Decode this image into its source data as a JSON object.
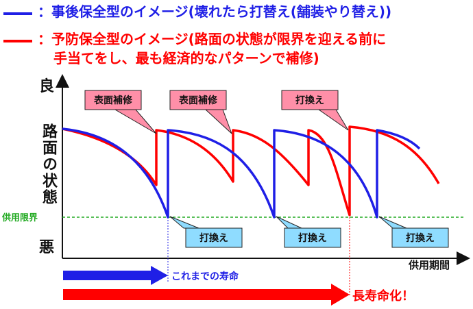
{
  "legend": {
    "blue": {
      "color": "#1f1fe6",
      "text": "：事後保全型のイメージ(壊れたら打替え(舗装やり替え))"
    },
    "red": {
      "color": "#ff0000",
      "line1": "：予防保全型のイメージ(路面の状態が限界を迎える前に",
      "line2": "手当てをし、最も経済的なパターンで補修)"
    }
  },
  "axes": {
    "y_top": "良",
    "y_label": "路面の状態",
    "y_bottom": "悪",
    "x_label": "供用期間",
    "limit_label": "供用限界"
  },
  "callouts": {
    "red": [
      "表面補修",
      "表面補修",
      "打換え"
    ],
    "blue": [
      "打換え",
      "打換え",
      "打換え"
    ]
  },
  "arrows": {
    "blue_label": "これまでの寿命",
    "red_label": "長寿命化！"
  },
  "colors": {
    "blue_curve": "#1f1fe6",
    "red_curve": "#ff0000",
    "limit_line": "#22aa22",
    "red_callout_fill": "#ff8fa8",
    "blue_callout_fill": "#8fdcff",
    "callout_border": "#222222"
  }
}
